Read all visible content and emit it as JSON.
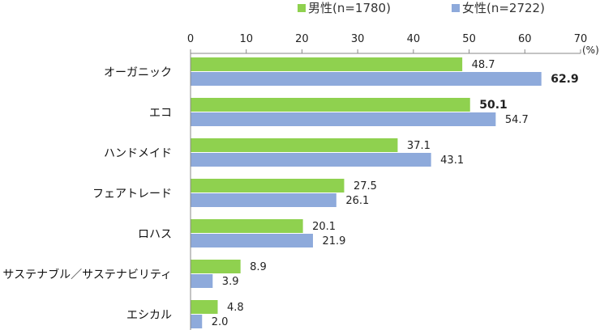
{
  "chart_data": {
    "type": "bar",
    "orientation": "horizontal",
    "unit": "(%)",
    "xlim": [
      0,
      70
    ],
    "x_ticks": [
      0,
      10,
      20,
      30,
      40,
      50,
      60,
      70
    ],
    "categories": [
      "オーガニック",
      "エコ",
      "ハンドメイド",
      "フェアトレード",
      "ロハス",
      "サステナブル／サステナビリティ",
      "エシカル"
    ],
    "series": [
      {
        "name": "男性(n=1780)",
        "color": "#8fd14f",
        "values": [
          48.7,
          50.1,
          37.1,
          27.5,
          20.1,
          8.9,
          4.8
        ],
        "bold_index": [
          1
        ]
      },
      {
        "name": "女性(n=2722)",
        "color": "#8eaadb",
        "values": [
          62.9,
          54.7,
          43.1,
          26.1,
          21.9,
          3.9,
          2.0
        ],
        "bold_index": [
          0
        ]
      }
    ],
    "legend_position": "top",
    "grid": false
  }
}
